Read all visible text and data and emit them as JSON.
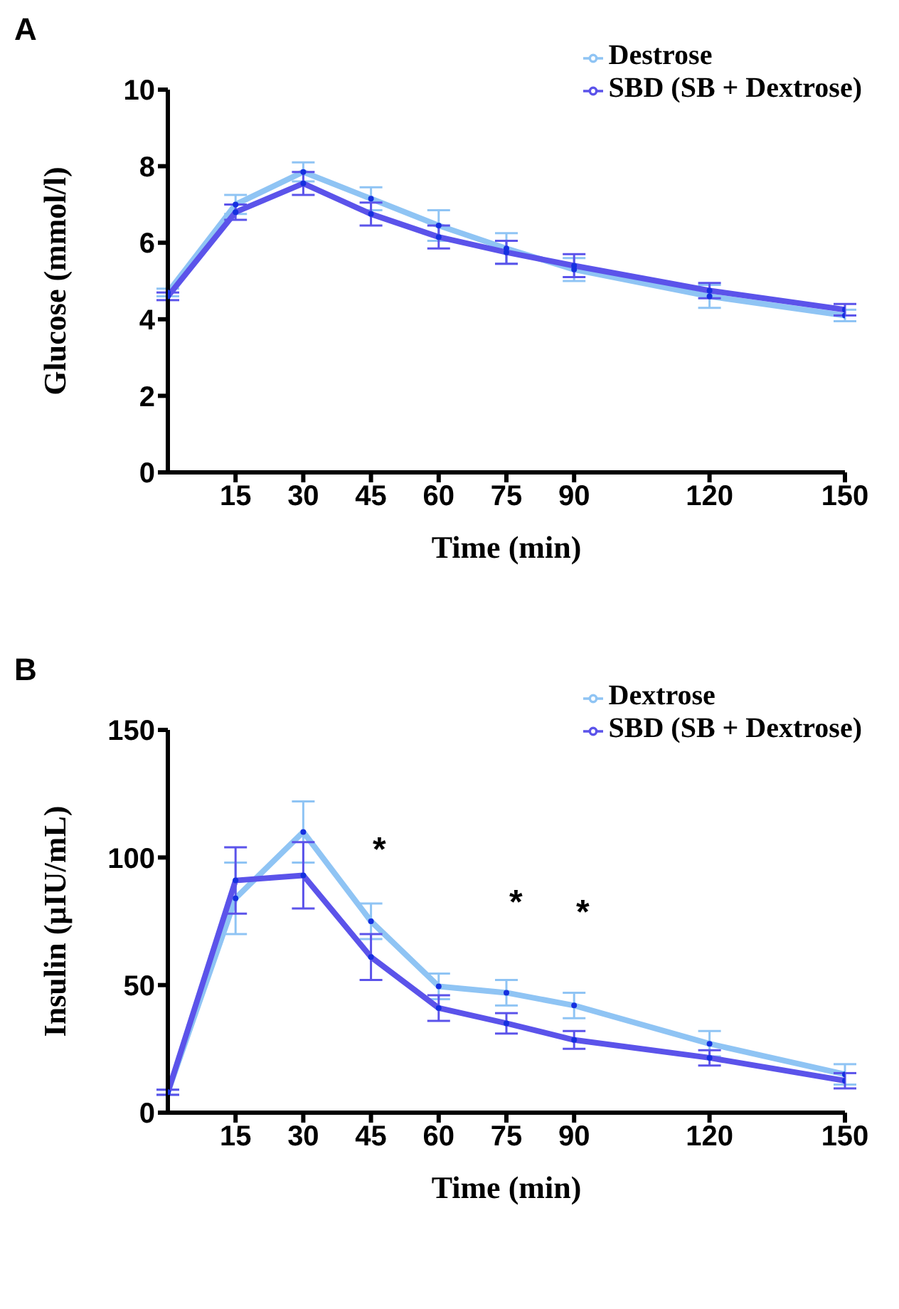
{
  "chart_data": [
    {
      "type": "line",
      "title": "A",
      "xlabel": "Time (min)",
      "ylabel": "Glucose (mmol/l)",
      "x": [
        0,
        15,
        30,
        45,
        60,
        75,
        90,
        120,
        150
      ],
      "xlim": [
        0,
        150
      ],
      "xticks": [
        15,
        30,
        45,
        60,
        75,
        90,
        120,
        150
      ],
      "ylim": [
        0,
        10
      ],
      "yticks": [
        0,
        2,
        4,
        6,
        8,
        10
      ],
      "legend": "top right",
      "marker": "circle",
      "line_style": "solid",
      "grid": false,
      "series": [
        {
          "name": "Destrose",
          "color": "#8fc4f4",
          "values": [
            4.7,
            7.0,
            7.85,
            7.15,
            6.45,
            5.85,
            5.3,
            4.6,
            4.1
          ],
          "errors": [
            0.1,
            0.25,
            0.25,
            0.3,
            0.4,
            0.4,
            0.3,
            0.3,
            0.15
          ]
        },
        {
          "name": "SBD (SB + Dextrose)",
          "color": "#5b53ea",
          "values": [
            4.6,
            6.8,
            7.55,
            6.75,
            6.15,
            5.75,
            5.4,
            4.75,
            4.25
          ],
          "errors": [
            0.1,
            0.2,
            0.3,
            0.3,
            0.3,
            0.3,
            0.3,
            0.2,
            0.15
          ]
        }
      ]
    },
    {
      "type": "line",
      "title": "B",
      "xlabel": "Time (min)",
      "ylabel": "Insulin (µIU/mL)",
      "x": [
        0,
        15,
        30,
        45,
        60,
        75,
        90,
        120,
        150
      ],
      "xlim": [
        0,
        150
      ],
      "xticks": [
        15,
        30,
        45,
        60,
        75,
        90,
        120,
        150
      ],
      "ylim": [
        0,
        150
      ],
      "yticks": [
        0,
        50,
        100,
        150
      ],
      "legend": "top right",
      "marker": "circle",
      "line_style": "solid",
      "grid": false,
      "series": [
        {
          "name": "Dextrose",
          "color": "#8fc4f4",
          "values": [
            8,
            84,
            110,
            75,
            49.5,
            47,
            42,
            27,
            15
          ],
          "errors": [
            1,
            14,
            12,
            7,
            5,
            5,
            5,
            5,
            4
          ]
        },
        {
          "name": "SBD (SB + Dextrose)",
          "color": "#5b53ea",
          "values": [
            8,
            91,
            93,
            61,
            41,
            35,
            28.5,
            21.5,
            12.5
          ],
          "errors": [
            1,
            13,
            13,
            9,
            5,
            4,
            3.5,
            3,
            3
          ]
        }
      ],
      "annotations": [
        "*",
        "*",
        "*"
      ]
    }
  ]
}
